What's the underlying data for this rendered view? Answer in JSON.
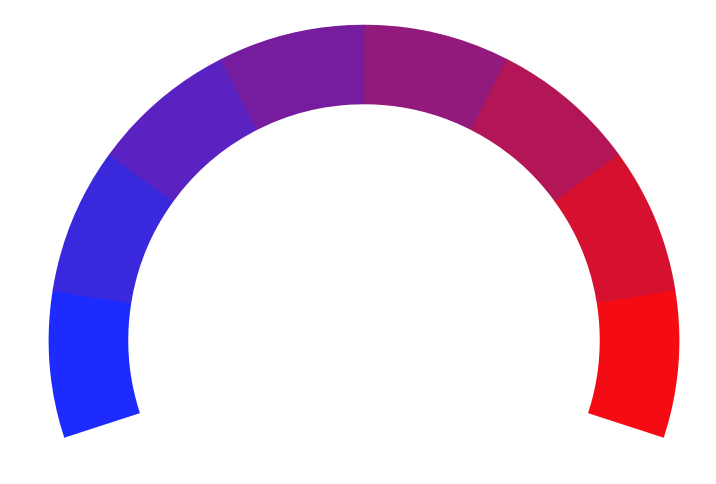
{
  "gauge": {
    "segments": [
      {
        "color": "#1d2bff"
      },
      {
        "color": "#3a28dc"
      },
      {
        "color": "#5a22c1"
      },
      {
        "color": "#761d9f"
      },
      {
        "color": "#931a7d"
      },
      {
        "color": "#b21656"
      },
      {
        "color": "#d6112f"
      },
      {
        "color": "#f40b14"
      }
    ]
  }
}
